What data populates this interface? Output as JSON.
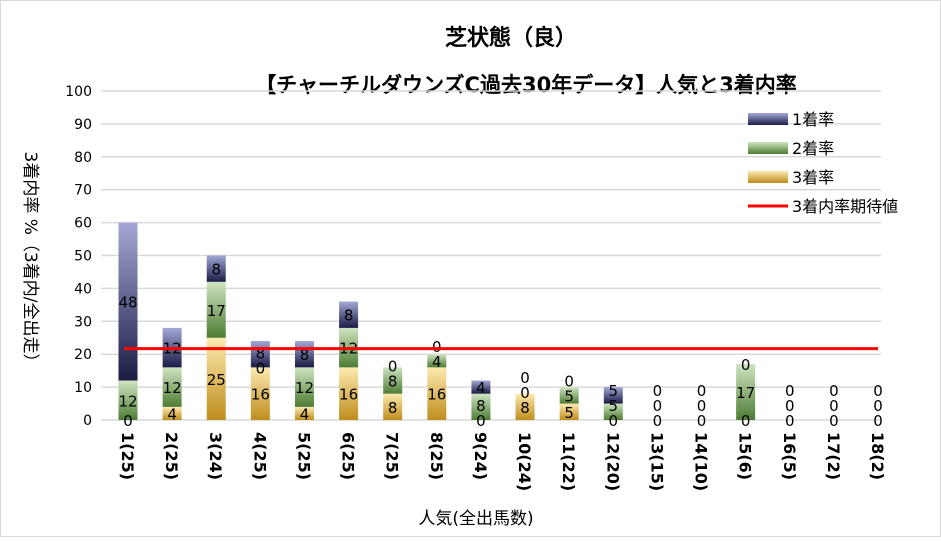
{
  "chart_data": {
    "type": "bar",
    "stacked": true,
    "title_line1": "芝状態（良）",
    "title_line2": "【チャーチルダウンズC過去30年データ】人気と3着内率",
    "xlabel": "人気(全出馬数)",
    "ylabel": "3着内率 %（3着内/全出走）",
    "ylim": [
      0,
      100
    ],
    "yticks": [
      "0",
      "10",
      "20",
      "30",
      "40",
      "50",
      "60",
      "70",
      "80",
      "90",
      "100"
    ],
    "grid": true,
    "legend_position": "top-right",
    "categories": [
      "1(25)",
      "2(25)",
      "3(24)",
      "4(25)",
      "5(25)",
      "6(25)",
      "7(25)",
      "8(25)",
      "9(24)",
      "10(24)",
      "11(22)",
      "12(20)",
      "13(15)",
      "14(10)",
      "15(6)",
      "16(5)",
      "17(2)",
      "18(2)"
    ],
    "series": [
      {
        "name": "1着率",
        "values": [
          48,
          12,
          8,
          8,
          8,
          8,
          0,
          0,
          4,
          0,
          0,
          5,
          0,
          0,
          0,
          0,
          0,
          0
        ],
        "colors": [
          "#1a1c45",
          "#a3a8d6"
        ]
      },
      {
        "name": "2着率",
        "values": [
          12,
          12,
          17,
          0,
          12,
          12,
          8,
          4,
          8,
          0,
          5,
          5,
          0,
          0,
          17,
          0,
          0,
          0
        ],
        "colors": [
          "#4d7c33",
          "#cfe5c2"
        ]
      },
      {
        "name": "3着率",
        "values": [
          0,
          4,
          25,
          16,
          4,
          16,
          8,
          16,
          0,
          8,
          5,
          0,
          0,
          0,
          0,
          0,
          0,
          0
        ],
        "colors": [
          "#bf8d1c",
          "#fdeab0"
        ]
      }
    ],
    "reference_line": {
      "name": "3着内率期待値",
      "value": 21.7,
      "color": "#ff0000"
    }
  }
}
